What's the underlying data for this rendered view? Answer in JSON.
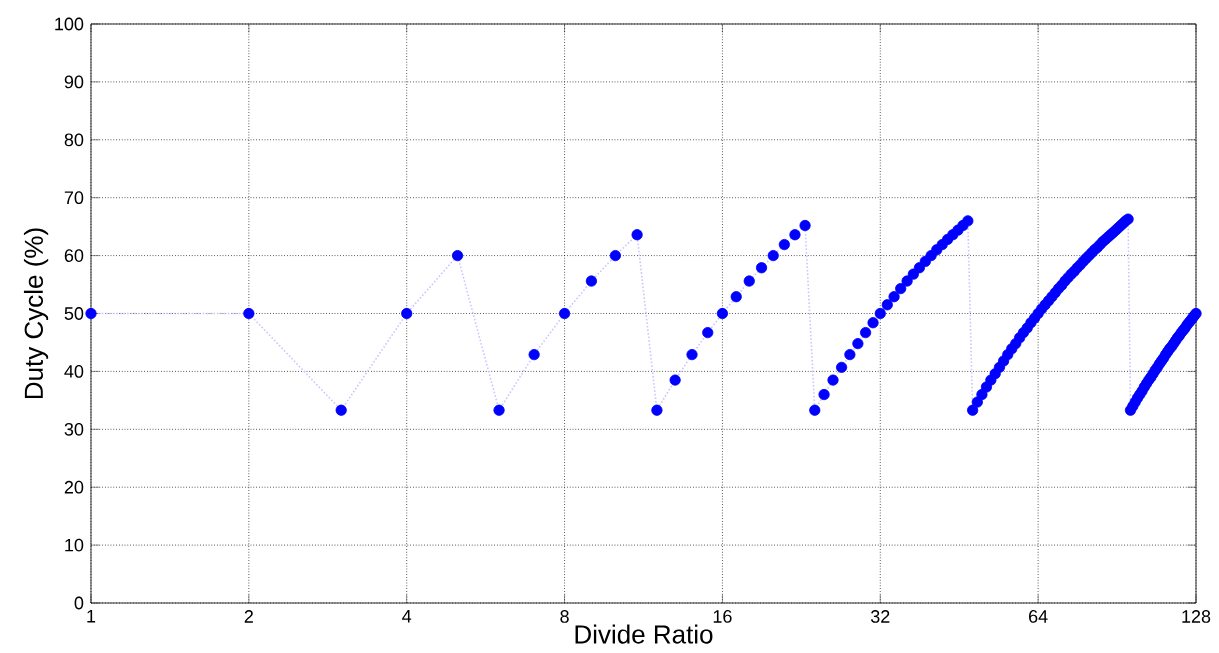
{
  "chart_data": {
    "type": "line",
    "xlabel": "Divide Ratio",
    "ylabel": "Duty Cycle (%)",
    "log": "x",
    "grid": true,
    "marker": "circle",
    "line_style": "dotted",
    "xlim": [
      1,
      128
    ],
    "xticks": [
      1,
      2,
      4,
      8,
      16,
      32,
      64,
      128
    ],
    "ylim": [
      0,
      100
    ],
    "yticks": [
      0,
      10,
      20,
      30,
      40,
      50,
      60,
      70,
      80,
      90,
      100
    ],
    "series": [
      {
        "color": "#0000ff",
        "x": [
          1,
          2,
          3,
          4,
          5,
          6,
          7,
          8,
          9,
          10,
          11,
          12,
          13,
          14,
          15,
          16,
          17,
          18,
          19,
          20,
          21,
          22,
          23,
          24,
          25,
          26,
          27,
          28,
          29,
          30,
          31,
          32,
          33,
          34,
          35,
          36,
          37,
          38,
          39,
          40,
          41,
          42,
          43,
          44,
          45,
          46,
          47,
          48,
          49,
          50,
          51,
          52,
          53,
          54,
          55,
          56,
          57,
          58,
          59,
          60,
          61,
          62,
          63,
          64,
          65,
          66,
          67,
          68,
          69,
          70,
          71,
          72,
          73,
          74,
          75,
          76,
          77,
          78,
          79,
          80,
          81,
          82,
          83,
          84,
          85,
          86,
          87,
          88,
          89,
          90,
          91,
          92,
          93,
          94,
          95,
          96,
          97,
          98,
          99,
          100,
          101,
          102,
          103,
          104,
          105,
          106,
          107,
          108,
          109,
          110,
          111,
          112,
          113,
          114,
          115,
          116,
          117,
          118,
          119,
          120,
          121,
          122,
          123,
          124,
          125,
          126,
          127,
          128
        ],
        "values": [
          50,
          50,
          33.3,
          50,
          60,
          33.3,
          42.9,
          50,
          55.6,
          60,
          63.6,
          33.3,
          38.5,
          42.9,
          46.7,
          50,
          52.9,
          55.6,
          57.9,
          60,
          61.9,
          63.6,
          65.2,
          33.3,
          36.0,
          38.5,
          40.7,
          42.9,
          44.8,
          46.7,
          48.4,
          50,
          51.5,
          52.9,
          54.3,
          55.6,
          56.8,
          57.9,
          59.0,
          60,
          61.0,
          61.9,
          62.8,
          63.6,
          64.4,
          65.2,
          66.0,
          33.3,
          34.7,
          36.0,
          37.3,
          38.5,
          39.6,
          40.7,
          41.8,
          42.9,
          43.9,
          44.8,
          45.8,
          46.7,
          47.5,
          48.4,
          49.2,
          50,
          50.8,
          51.5,
          52.2,
          52.9,
          53.6,
          54.3,
          54.9,
          55.6,
          56.2,
          56.8,
          57.3,
          57.9,
          58.4,
          59.0,
          59.5,
          60,
          60.5,
          61.0,
          61.4,
          61.9,
          62.4,
          62.8,
          63.2,
          63.6,
          64.0,
          64.4,
          64.8,
          65.2,
          65.6,
          66.0,
          66.3,
          33.3,
          34.0,
          34.7,
          35.4,
          36.0,
          36.6,
          37.3,
          37.9,
          38.5,
          39.0,
          39.6,
          40.2,
          40.7,
          41.3,
          41.8,
          42.3,
          42.9,
          43.4,
          43.9,
          44.3,
          44.8,
          45.3,
          45.8,
          46.2,
          46.7,
          47.1,
          47.5,
          48.0,
          48.4,
          48.8,
          49.2,
          49.6,
          50
        ]
      }
    ]
  }
}
